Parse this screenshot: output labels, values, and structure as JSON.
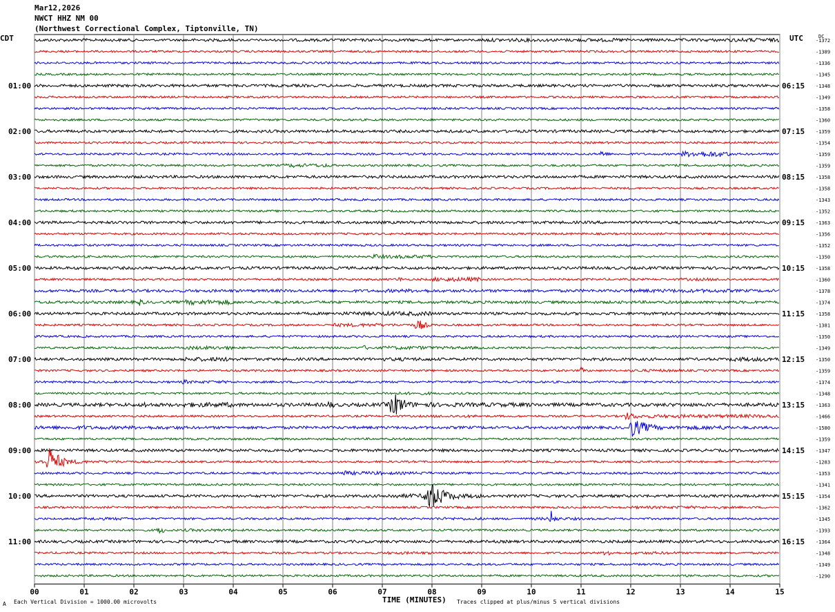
{
  "header": {
    "date": "Mar12,2026",
    "station": "NWCT HHZ NM 00",
    "location": "(Northwest Correctional Complex, Tiptonville, TN)"
  },
  "left_tz": "CDT",
  "right_tz": "UTC",
  "dc_label": "DC",
  "footer": {
    "scale_note": "Each Vertical Division = 1000.00 microvolts",
    "clip_note": "Traces clipped at plus/minus 5 vertical divisions",
    "corner_mark": "A"
  },
  "colors": {
    "trace_cycle": [
      "#000000",
      "#e00000",
      "#0000e0",
      "#006400"
    ],
    "grid": "#808080"
  },
  "chart_data": {
    "type": "line",
    "subtype": "helicorder",
    "xlabel": "TIME (MINUTES)",
    "x_ticks": [
      "00",
      "01",
      "02",
      "03",
      "04",
      "05",
      "06",
      "07",
      "08",
      "09",
      "10",
      "11",
      "12",
      "13",
      "14",
      "15"
    ],
    "xlim": [
      0,
      15
    ],
    "rows_per_hour": 4,
    "left_hour_labels": [
      "01:00",
      "02:00",
      "03:00",
      "04:00",
      "05:00",
      "06:00",
      "07:00",
      "08:00",
      "09:00",
      "10:00",
      "11:00"
    ],
    "right_hour_labels": [
      "06:15",
      "07:15",
      "08:15",
      "09:15",
      "10:15",
      "11:15",
      "12:15",
      "13:15",
      "14:15",
      "15:15",
      "16:15"
    ],
    "dc_offsets": [
      -1372,
      -1389,
      -1336,
      -1345,
      -1348,
      -1349,
      -1358,
      -1360,
      -1359,
      -1354,
      -1359,
      -1359,
      -1358,
      -1358,
      -1343,
      -1352,
      -1363,
      -1356,
      -1352,
      -1350,
      -1358,
      -1360,
      -1378,
      -1374,
      -1358,
      -1381,
      -1350,
      -1349,
      -1350,
      -1359,
      -1374,
      -1348,
      -1363,
      -1466,
      -1580,
      -1359,
      -1347,
      -1283,
      -1353,
      -1341,
      -1354,
      -1362,
      -1345,
      -1393,
      -1364,
      -1348,
      -1349,
      -1290
    ],
    "noise": [
      [
        2,
        2,
        1.6,
        2,
        1.6,
        2,
        2,
        2,
        1.7,
        2.5,
        2.2,
        2.5,
        2,
        2.2,
        2.7,
        2
      ],
      [
        1.5,
        1.5,
        1.5,
        1.5,
        1.5,
        1.5,
        1.5,
        1.5,
        1.5,
        1.5,
        1.5,
        1.5,
        1.5,
        1.5,
        1.5,
        1.5
      ],
      [
        1.5,
        1.5,
        1.5,
        1.5,
        1.5,
        1.5,
        1.5,
        1.5,
        1.5,
        1.5,
        1.5,
        1.5,
        1.5,
        1.5,
        1.5,
        1.5
      ],
      [
        1.5,
        1.5,
        1.5,
        1.5,
        1.5,
        1.5,
        1.5,
        1.5,
        1.5,
        1.5,
        1.5,
        1.5,
        1.5,
        1.5,
        1.5,
        1.5
      ],
      [
        2,
        2,
        2,
        2,
        2,
        2,
        2,
        2,
        2,
        2,
        2,
        2,
        2,
        2,
        2,
        2
      ],
      [
        1.5,
        1.5,
        1.5,
        1.5,
        1.5,
        1.5,
        1.5,
        1.5,
        1.5,
        1.5,
        1.5,
        1.5,
        1.5,
        1.5,
        1.5,
        1.5
      ],
      [
        1.5,
        1.5,
        1.5,
        1.5,
        1.5,
        1.5,
        1.5,
        1.5,
        1.5,
        1.5,
        1.5,
        1.5,
        1.5,
        1.5,
        1.5,
        1.5
      ],
      [
        1.5,
        1.5,
        1.5,
        1.5,
        1.5,
        1.5,
        1.5,
        1.5,
        1.5,
        1.5,
        1.5,
        1.5,
        1.5,
        1.5,
        1.5,
        1.5
      ],
      [
        2,
        2,
        2,
        2,
        2,
        2,
        2,
        2,
        2,
        2,
        2,
        2,
        2,
        2,
        2,
        2
      ],
      [
        1.5,
        1.5,
        1.5,
        1.5,
        1.5,
        1.5,
        1.5,
        1.5,
        1.5,
        1.5,
        1.5,
        1.5,
        1.5,
        1.5,
        1.5,
        1.5
      ],
      [
        1.5,
        1.5,
        1.5,
        1.5,
        1.5,
        1.5,
        1.5,
        1.5,
        1.5,
        1.5,
        1.5,
        1.5,
        1.5,
        4,
        1.5,
        1.5
      ],
      [
        1.5,
        1.5,
        1.5,
        1.5,
        1.5,
        2.5,
        1.5,
        1.5,
        1.5,
        1.5,
        1.5,
        1.5,
        1.5,
        1.5,
        1.5,
        1.5
      ],
      [
        2,
        2,
        2,
        2,
        2,
        2,
        2,
        2,
        2,
        2,
        2,
        2,
        2,
        2,
        2,
        2
      ],
      [
        1.5,
        1.5,
        1.5,
        1.5,
        1.5,
        1.5,
        1.5,
        1.5,
        1.5,
        1.5,
        1.5,
        1.5,
        1.5,
        1.5,
        1.5,
        1.5
      ],
      [
        1.5,
        1.5,
        1.5,
        1.5,
        1.5,
        1.5,
        1.5,
        1.5,
        1.5,
        1.5,
        1.5,
        1.5,
        1.5,
        1.5,
        1.5,
        1.5
      ],
      [
        1.5,
        1.5,
        1.5,
        1.5,
        1.5,
        1.5,
        1.5,
        1.5,
        1.5,
        1.5,
        1.5,
        1.5,
        1.5,
        1.5,
        1.5,
        1.5
      ],
      [
        2,
        2,
        2,
        2,
        2,
        2,
        2,
        2,
        2,
        2,
        2,
        2,
        2,
        2,
        2,
        2
      ],
      [
        1.5,
        1.5,
        1.5,
        1.5,
        1.5,
        1.5,
        1.5,
        1.5,
        1.5,
        1.5,
        1.5,
        1.5,
        1.5,
        1.5,
        1.5,
        1.5
      ],
      [
        1.5,
        1.5,
        1.5,
        1.5,
        1.5,
        1.5,
        1.5,
        1.5,
        1.5,
        1.5,
        1.5,
        1.5,
        1.5,
        1.5,
        1.5,
        1.5
      ],
      [
        1.5,
        1.5,
        1.5,
        1.5,
        1.5,
        1.5,
        1.5,
        2.5,
        1.5,
        1.5,
        1.5,
        1.5,
        1.5,
        1.5,
        1.5,
        1.5
      ],
      [
        2,
        2,
        2,
        2,
        2,
        2,
        2,
        2,
        2,
        2,
        2,
        2,
        2,
        2,
        2,
        2
      ],
      [
        1.5,
        1.5,
        1.5,
        1.5,
        1.5,
        1.5,
        1.5,
        1.5,
        3,
        1.5,
        1.5,
        1.5,
        1.5,
        2,
        1.5,
        1.5
      ],
      [
        2,
        2,
        2,
        2,
        2,
        2,
        2,
        2.5,
        2,
        2,
        2,
        2,
        2.5,
        2.5,
        2,
        2
      ],
      [
        2,
        2,
        2,
        3.5,
        2,
        2,
        2,
        2,
        2,
        2,
        2,
        2,
        2,
        2,
        2,
        2
      ],
      [
        2,
        2,
        2,
        2,
        2,
        2,
        2.5,
        3,
        2,
        2,
        2,
        2,
        2,
        2,
        2,
        2
      ],
      [
        1.5,
        1.5,
        1.5,
        1.5,
        1.5,
        1.5,
        2.5,
        2,
        1.5,
        1.5,
        1.5,
        1.5,
        1.5,
        1.5,
        1.5,
        1.5
      ],
      [
        1.5,
        1.5,
        1.5,
        1.5,
        1.5,
        1.5,
        1.5,
        1.5,
        1.5,
        1.5,
        1.5,
        1.5,
        1.5,
        1.5,
        1.5,
        1.5
      ],
      [
        1.5,
        1.5,
        1.5,
        2.5,
        1.5,
        1.5,
        1.5,
        2.5,
        2,
        1.5,
        1.5,
        1.5,
        1.5,
        1.5,
        1.5,
        1.5
      ],
      [
        2,
        2,
        2,
        3,
        2,
        2,
        2,
        2.5,
        2,
        2,
        2,
        2,
        2,
        2,
        3,
        2
      ],
      [
        1.5,
        1.5,
        1.5,
        1.5,
        1.5,
        1.5,
        1.5,
        1.5,
        1.5,
        1.5,
        1.5,
        1.5,
        2,
        1.5,
        1.5,
        1.5
      ],
      [
        1.5,
        1.5,
        1.5,
        2,
        1.5,
        1.5,
        1.5,
        1.5,
        1.5,
        1.5,
        1.5,
        1.5,
        1.5,
        1.5,
        1.5,
        1.5
      ],
      [
        1.5,
        1.5,
        1.5,
        1.5,
        1.5,
        1.5,
        1.5,
        2,
        1.5,
        1.5,
        1.5,
        1.5,
        1.5,
        1.5,
        1.5,
        2
      ],
      [
        2.5,
        2.5,
        2.5,
        3.5,
        2.5,
        2.5,
        2.5,
        3.5,
        3,
        3,
        2.5,
        2.5,
        2.5,
        2.5,
        2.5,
        2.5
      ],
      [
        1.5,
        1.5,
        1.5,
        1.5,
        1.5,
        1.5,
        1.5,
        1.5,
        2,
        1.5,
        1.5,
        1.5,
        2.5,
        2.5,
        2.5,
        2.5
      ],
      [
        2.5,
        2.5,
        2.5,
        2,
        2,
        2,
        2,
        2,
        2,
        2,
        2,
        2,
        2.5,
        3,
        2,
        2
      ],
      [
        1.5,
        1.5,
        1.5,
        1.5,
        1.5,
        1.5,
        1.5,
        1.5,
        1.5,
        1.5,
        1.5,
        1.5,
        1.5,
        1.5,
        1.5,
        1.5
      ],
      [
        2,
        2,
        2,
        2,
        2,
        2,
        2,
        2,
        2,
        2,
        2,
        2,
        2,
        2,
        2,
        2.5
      ],
      [
        3,
        2,
        1.5,
        1.5,
        1.5,
        1.5,
        1.5,
        1.5,
        1.5,
        1.5,
        1.5,
        1.5,
        1.5,
        1.5,
        1.5,
        1.5
      ],
      [
        1.5,
        1.5,
        1.5,
        1.5,
        1.5,
        1.5,
        2.5,
        2,
        1.5,
        1.5,
        1.5,
        1.5,
        1.5,
        1.5,
        1.5,
        1.5
      ],
      [
        1.5,
        1.5,
        1.5,
        1.5,
        1.5,
        1.5,
        1.5,
        1.5,
        1.5,
        1.5,
        1.5,
        1.5,
        1.5,
        1.5,
        1.5,
        1.5
      ],
      [
        2,
        2,
        2,
        2,
        2,
        2,
        2,
        3,
        3,
        2,
        2,
        2,
        2,
        2,
        2,
        2
      ],
      [
        1.5,
        1.5,
        1.5,
        1.5,
        1.5,
        1.5,
        1.5,
        1.5,
        1.5,
        1.5,
        1.5,
        1.5,
        2,
        2,
        1.5,
        1.5
      ],
      [
        1.5,
        2,
        1.5,
        1.5,
        1.5,
        1.5,
        1.5,
        1.5,
        2,
        1.5,
        2,
        1.5,
        1.5,
        1.5,
        1.5,
        1.5
      ],
      [
        1.5,
        1.5,
        1.5,
        2,
        1.5,
        1.5,
        1.5,
        1.5,
        1.5,
        1.5,
        1.5,
        1.5,
        1.5,
        1.5,
        1.5,
        2
      ],
      [
        2,
        2,
        2,
        2,
        2,
        2,
        2,
        2,
        2,
        2,
        2,
        2,
        2,
        2,
        2,
        2
      ],
      [
        1.5,
        1.5,
        1.5,
        1.5,
        1.5,
        1.5,
        1.5,
        2,
        1.5,
        1.5,
        1.5,
        1.5,
        2,
        1.5,
        1.5,
        1.5
      ],
      [
        1.5,
        1.5,
        1.5,
        1.5,
        1.5,
        1.5,
        1.5,
        1.5,
        1.5,
        1.5,
        1.5,
        1.5,
        1.5,
        1.5,
        1.5,
        1.5
      ],
      [
        1.5,
        1.5,
        1.5,
        1.5,
        1.5,
        1.5,
        1.5,
        1.5,
        1.5,
        1.5,
        1.5,
        1.5,
        1.5,
        1.5,
        1.5,
        1.5
      ]
    ],
    "bursts": [
      {
        "row": 10,
        "t": 11.4,
        "dur": 0.3,
        "amp": 6
      },
      {
        "row": 11,
        "t": 5.2,
        "dur": 0.25,
        "amp": 4
      },
      {
        "row": 19,
        "t": 6.8,
        "dur": 0.5,
        "amp": 5
      },
      {
        "row": 21,
        "t": 7.3,
        "dur": 0.3,
        "amp": 5
      },
      {
        "row": 23,
        "t": 2.1,
        "dur": 0.3,
        "amp": 6
      },
      {
        "row": 24,
        "t": 6.5,
        "dur": 0.3,
        "amp": 5
      },
      {
        "row": 25,
        "t": 7.7,
        "dur": 0.4,
        "amp": 10
      },
      {
        "row": 27,
        "t": 6.6,
        "dur": 0.6,
        "amp": 4
      },
      {
        "row": 29,
        "t": 11.0,
        "dur": 0.3,
        "amp": 5
      },
      {
        "row": 30,
        "t": 3.0,
        "dur": 0.2,
        "amp": 6
      },
      {
        "row": 32,
        "t": 7.2,
        "dur": 0.5,
        "amp": 22
      },
      {
        "row": 32,
        "t": 5.9,
        "dur": 0.5,
        "amp": 6
      },
      {
        "row": 32,
        "t": 2.2,
        "dur": 0.5,
        "amp": 5
      },
      {
        "row": 33,
        "t": 11.9,
        "dur": 0.8,
        "amp": 6
      },
      {
        "row": 34,
        "t": 12.0,
        "dur": 0.8,
        "amp": 15
      },
      {
        "row": 34,
        "t": 1.0,
        "dur": 0.3,
        "amp": 4
      },
      {
        "row": 36,
        "t": 15.0,
        "dur": 0.1,
        "amp": 8
      },
      {
        "row": 37,
        "t": 0.3,
        "dur": 0.5,
        "amp": 22
      },
      {
        "row": 38,
        "t": 6.2,
        "dur": 0.5,
        "amp": 5
      },
      {
        "row": 40,
        "t": 7.9,
        "dur": 0.7,
        "amp": 26
      },
      {
        "row": 42,
        "t": 10.4,
        "dur": 0.2,
        "amp": 12
      },
      {
        "row": 43,
        "t": 2.5,
        "dur": 0.3,
        "amp": 7
      },
      {
        "row": 45,
        "t": 11.5,
        "dur": 0.4,
        "amp": 6
      }
    ]
  }
}
